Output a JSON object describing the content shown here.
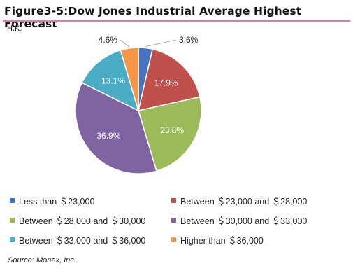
{
  "header": {
    "title": "Figure3-5:Dow Jones Industrial Average Highest Forecast",
    "region": "H.K."
  },
  "source": "Source: Monex, Inc.",
  "chart_data": {
    "type": "pie",
    "legend_position": "bottom",
    "slices": [
      {
        "label": "Less than ＄23,000",
        "value": 3.6,
        "value_label": "3.6%",
        "color": "#4472c4"
      },
      {
        "label": "Between ＄23,000  and ＄28,000",
        "value": 17.9,
        "value_label": "17.9%",
        "color": "#c0504d"
      },
      {
        "label": "Between ＄28,000  and ＄30,000",
        "value": 23.8,
        "value_label": "23.8%",
        "color": "#9bbb59"
      },
      {
        "label": "Between ＄30,000  and ＄33,000",
        "value": 36.9,
        "value_label": "36.9%",
        "color": "#8064a2"
      },
      {
        "label": "Between ＄33,000  and ＄36,000",
        "value": 13.1,
        "value_label": "13.1%",
        "color": "#4bacc6"
      },
      {
        "label": "Higher than ＄36,000",
        "value": 4.6,
        "value_label": "4.6%",
        "color": "#f79646"
      }
    ]
  }
}
